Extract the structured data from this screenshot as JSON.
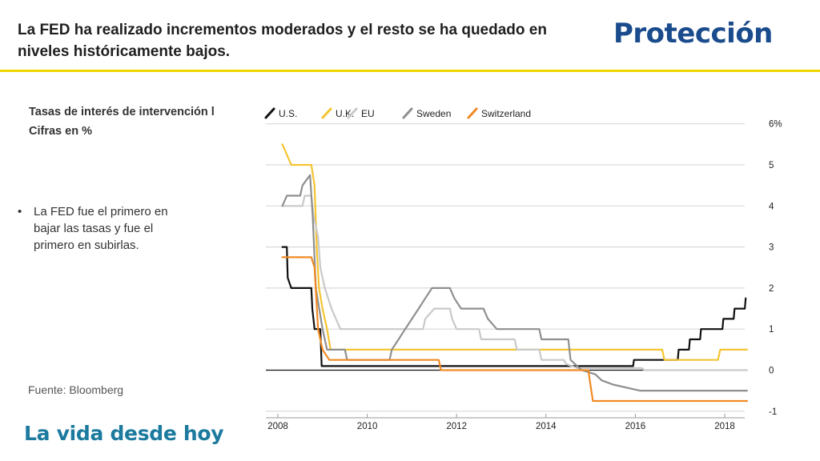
{
  "slide": {
    "title": "La FED ha realizado incrementos moderados y el resto se ha quedado en niveles históricamente bajos.",
    "brand": "Protección",
    "chart_heading_line1": "Tasas de interés de intervención l",
    "chart_heading_line2": "Cifras en %",
    "bullet_text": "La FED fue el primero en bajar las tasas y fue el primero en subirlas.",
    "source": "Fuente: Bloomberg",
    "slogan": "La vida desde hoy",
    "colors": {
      "brand": "#1a4b8c",
      "rule": "#f2d500",
      "slogan": "#1b7a9e"
    }
  },
  "chart_data": {
    "type": "line",
    "title": "",
    "xlabel": "",
    "ylabel": "",
    "xlim": [
      2008.0,
      2018.7
    ],
    "ylim": [
      -1.2,
      6.2
    ],
    "x_ticks": [
      2008,
      2010,
      2012,
      2014,
      2016,
      2018
    ],
    "y_ticks": [
      6,
      5,
      4,
      3,
      2,
      1,
      0,
      -1
    ],
    "y_tick_labels": [
      "6%",
      "5",
      "4",
      "3",
      "2",
      "1",
      "0",
      "-1"
    ],
    "grid": "horizontal",
    "legend": "top-left",
    "y_axis_position": "right",
    "series": [
      {
        "name": "U.S.",
        "color": "#111111",
        "points": [
          [
            2008.1,
            3.0
          ],
          [
            2008.2,
            3.0
          ],
          [
            2008.22,
            2.25
          ],
          [
            2008.3,
            2.0
          ],
          [
            2008.75,
            2.0
          ],
          [
            2008.77,
            1.5
          ],
          [
            2008.82,
            1.0
          ],
          [
            2008.95,
            1.0
          ],
          [
            2008.98,
            0.1
          ],
          [
            2015.95,
            0.1
          ],
          [
            2015.97,
            0.25
          ],
          [
            2016.95,
            0.25
          ],
          [
            2016.97,
            0.5
          ],
          [
            2017.2,
            0.5
          ],
          [
            2017.22,
            0.75
          ],
          [
            2017.45,
            0.75
          ],
          [
            2017.47,
            1.0
          ],
          [
            2017.95,
            1.0
          ],
          [
            2017.97,
            1.25
          ],
          [
            2018.2,
            1.25
          ],
          [
            2018.22,
            1.5
          ],
          [
            2018.45,
            1.5
          ],
          [
            2018.47,
            1.75
          ]
        ]
      },
      {
        "name": "U.K.",
        "color": "#f5c431",
        "points": [
          [
            2008.1,
            5.5
          ],
          [
            2008.2,
            5.25
          ],
          [
            2008.3,
            5.0
          ],
          [
            2008.75,
            5.0
          ],
          [
            2008.82,
            4.5
          ],
          [
            2008.87,
            3.0
          ],
          [
            2008.92,
            2.0
          ],
          [
            2009.0,
            1.5
          ],
          [
            2009.1,
            1.0
          ],
          [
            2009.18,
            0.5
          ],
          [
            2016.6,
            0.5
          ],
          [
            2016.65,
            0.25
          ],
          [
            2017.85,
            0.25
          ],
          [
            2017.9,
            0.5
          ],
          [
            2018.5,
            0.5
          ]
        ]
      },
      {
        "name": "EU",
        "color": "#c9c9c9",
        "points": [
          [
            2008.1,
            4.0
          ],
          [
            2008.55,
            4.0
          ],
          [
            2008.6,
            4.25
          ],
          [
            2008.75,
            4.25
          ],
          [
            2008.8,
            3.75
          ],
          [
            2008.9,
            3.25
          ],
          [
            2008.95,
            2.5
          ],
          [
            2009.05,
            2.0
          ],
          [
            2009.2,
            1.5
          ],
          [
            2009.3,
            1.25
          ],
          [
            2009.4,
            1.0
          ],
          [
            2011.25,
            1.0
          ],
          [
            2011.3,
            1.25
          ],
          [
            2011.5,
            1.5
          ],
          [
            2011.85,
            1.5
          ],
          [
            2011.9,
            1.25
          ],
          [
            2012.0,
            1.0
          ],
          [
            2012.5,
            1.0
          ],
          [
            2012.55,
            0.75
          ],
          [
            2013.3,
            0.75
          ],
          [
            2013.35,
            0.5
          ],
          [
            2013.85,
            0.5
          ],
          [
            2013.9,
            0.25
          ],
          [
            2014.4,
            0.25
          ],
          [
            2014.45,
            0.15
          ],
          [
            2014.7,
            0.05
          ],
          [
            2016.15,
            0.05
          ],
          [
            2016.2,
            0.0
          ],
          [
            2018.5,
            0.0
          ]
        ]
      },
      {
        "name": "Sweden",
        "color": "#8f8f8f",
        "points": [
          [
            2008.1,
            4.0
          ],
          [
            2008.2,
            4.25
          ],
          [
            2008.5,
            4.25
          ],
          [
            2008.55,
            4.5
          ],
          [
            2008.72,
            4.75
          ],
          [
            2008.78,
            3.75
          ],
          [
            2008.85,
            2.0
          ],
          [
            2009.0,
            1.0
          ],
          [
            2009.1,
            0.5
          ],
          [
            2009.5,
            0.5
          ],
          [
            2009.55,
            0.25
          ],
          [
            2010.5,
            0.25
          ],
          [
            2010.55,
            0.5
          ],
          [
            2010.7,
            0.75
          ],
          [
            2010.85,
            1.0
          ],
          [
            2011.0,
            1.25
          ],
          [
            2011.15,
            1.5
          ],
          [
            2011.3,
            1.75
          ],
          [
            2011.45,
            2.0
          ],
          [
            2011.85,
            2.0
          ],
          [
            2011.95,
            1.75
          ],
          [
            2012.1,
            1.5
          ],
          [
            2012.6,
            1.5
          ],
          [
            2012.7,
            1.25
          ],
          [
            2012.9,
            1.0
          ],
          [
            2013.85,
            1.0
          ],
          [
            2013.9,
            0.75
          ],
          [
            2014.5,
            0.75
          ],
          [
            2014.55,
            0.25
          ],
          [
            2014.8,
            0.0
          ],
          [
            2015.1,
            -0.1
          ],
          [
            2015.25,
            -0.25
          ],
          [
            2015.5,
            -0.35
          ],
          [
            2016.1,
            -0.5
          ],
          [
            2018.5,
            -0.5
          ]
        ]
      },
      {
        "name": "Switzerland",
        "color": "#f08a24",
        "points": [
          [
            2008.1,
            2.75
          ],
          [
            2008.75,
            2.75
          ],
          [
            2008.82,
            2.5
          ],
          [
            2008.9,
            1.0
          ],
          [
            2009.0,
            0.5
          ],
          [
            2009.15,
            0.25
          ],
          [
            2011.6,
            0.25
          ],
          [
            2011.65,
            0.0
          ],
          [
            2014.95,
            0.0
          ],
          [
            2014.98,
            -0.25
          ],
          [
            2015.05,
            -0.75
          ],
          [
            2018.5,
            -0.75
          ]
        ]
      }
    ]
  }
}
